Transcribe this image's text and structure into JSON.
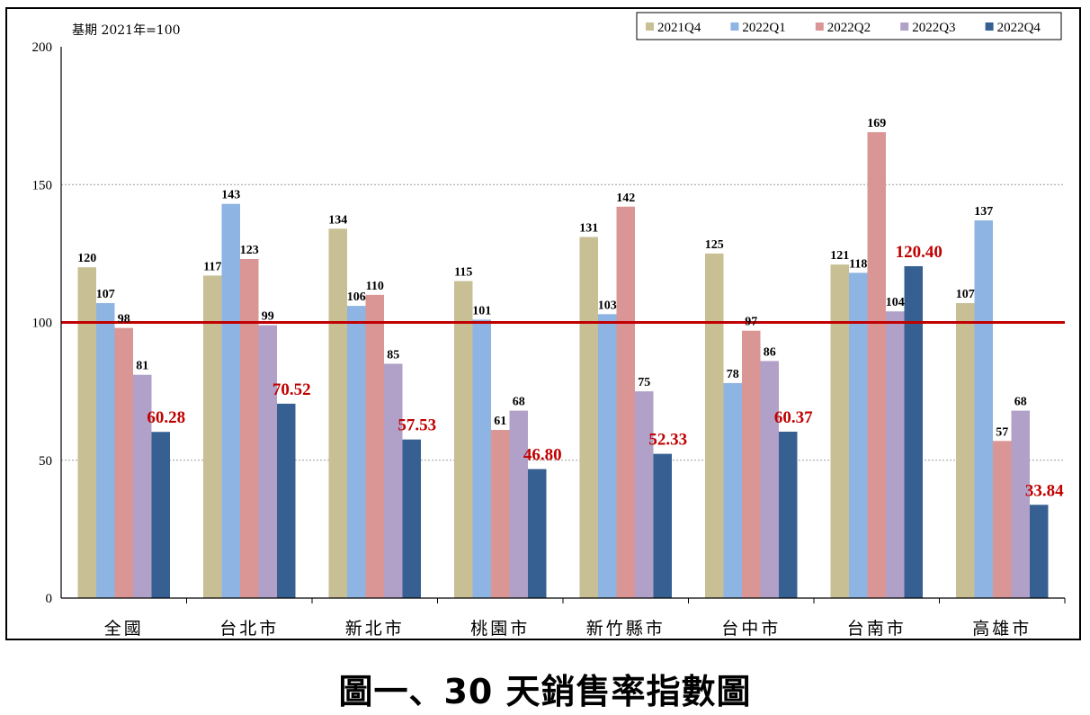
{
  "chart_data": {
    "type": "bar",
    "title": "",
    "annotation": "基期 2021年=100",
    "xlabel": "",
    "ylabel": "",
    "ylim": [
      0,
      200
    ],
    "yticks": [
      "0",
      "50",
      "100",
      "150",
      "200"
    ],
    "reference_line": {
      "value": 100,
      "color": "#c00000"
    },
    "grid": true,
    "legend_position": "top-right",
    "categories": [
      "全國",
      "台北市",
      "新北市",
      "桃園市",
      "新竹縣市",
      "台中市",
      "台南市",
      "高雄市"
    ],
    "series": [
      {
        "name": "2021Q4",
        "color": "#c8bf94",
        "values": [
          120,
          117,
          134,
          115,
          131,
          125,
          121,
          107
        ],
        "labels": [
          "120",
          "117",
          "134",
          "115",
          "131",
          "125",
          "121",
          "107"
        ]
      },
      {
        "name": "2022Q1",
        "color": "#8db4e2",
        "values": [
          107,
          143,
          106,
          101,
          103,
          78,
          118,
          137
        ],
        "labels": [
          "107",
          "143",
          "106",
          "101",
          "103",
          "78",
          "118",
          "137"
        ]
      },
      {
        "name": "2022Q2",
        "color": "#da9694",
        "values": [
          98,
          123,
          110,
          61,
          142,
          97,
          169,
          57
        ],
        "labels": [
          "98",
          "123",
          "110",
          "61",
          "142",
          "97",
          "169",
          "57"
        ]
      },
      {
        "name": "2022Q3",
        "color": "#b1a0c7",
        "values": [
          81,
          99,
          85,
          68,
          75,
          86,
          104,
          68
        ],
        "labels": [
          "81",
          "99",
          "85",
          "68",
          "75",
          "86",
          "104",
          "68"
        ]
      },
      {
        "name": "2022Q4",
        "color": "#366092",
        "values": [
          60.28,
          70.52,
          57.53,
          46.8,
          52.33,
          60.37,
          120.4,
          33.84
        ],
        "labels": [
          "60.28",
          "70.52",
          "57.53",
          "46.80",
          "52.33",
          "60.37",
          "120.40",
          "33.84"
        ],
        "highlight": true
      }
    ]
  },
  "caption": "圖一、30 天銷售率指數圖"
}
